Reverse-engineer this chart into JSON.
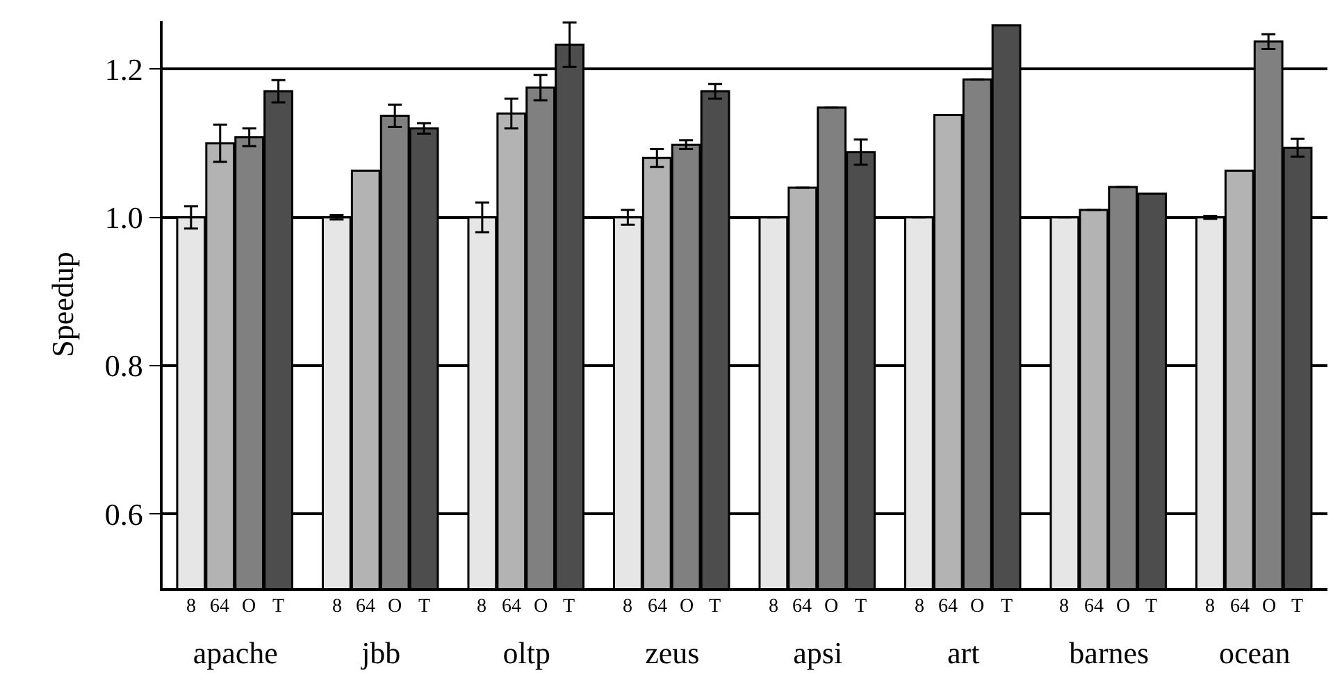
{
  "chart_data": {
    "type": "bar",
    "ylabel": "Speedup",
    "categories": [
      "apache",
      "jbb",
      "oltp",
      "zeus",
      "apsi",
      "art",
      "barnes",
      "ocean"
    ],
    "series": [
      {
        "name": "8",
        "color": "#e6e6e6",
        "values": [
          1.0,
          1.0,
          1.0,
          1.0,
          1.0,
          1.0,
          1.0,
          1.0
        ],
        "errors": [
          0.015,
          0.003,
          0.02,
          0.01,
          null,
          null,
          null,
          0.002
        ]
      },
      {
        "name": "64",
        "color": "#b3b3b3",
        "values": [
          1.1,
          1.063,
          1.14,
          1.08,
          1.04,
          1.138,
          1.01,
          1.063
        ],
        "errors": [
          0.025,
          null,
          0.02,
          0.012,
          null,
          null,
          null,
          null
        ]
      },
      {
        "name": "O",
        "color": "#808080",
        "values": [
          1.108,
          1.137,
          1.175,
          1.098,
          1.148,
          1.186,
          1.041,
          1.237
        ],
        "errors": [
          0.012,
          0.015,
          0.017,
          0.006,
          null,
          null,
          null,
          0.01
        ]
      },
      {
        "name": "T",
        "color": "#4d4d4d",
        "values": [
          1.17,
          1.12,
          1.233,
          1.17,
          1.088,
          1.259,
          1.032,
          1.094
        ],
        "errors": [
          0.015,
          0.007,
          0.03,
          0.01,
          0.017,
          null,
          null,
          0.012
        ]
      }
    ],
    "ylim": [
      0.5,
      1.265
    ],
    "yticks": [
      0.6,
      0.8,
      {
        "value": 1,
        "label": "1.0"
      },
      1.2
    ],
    "grid": "y",
    "legend": false
  }
}
